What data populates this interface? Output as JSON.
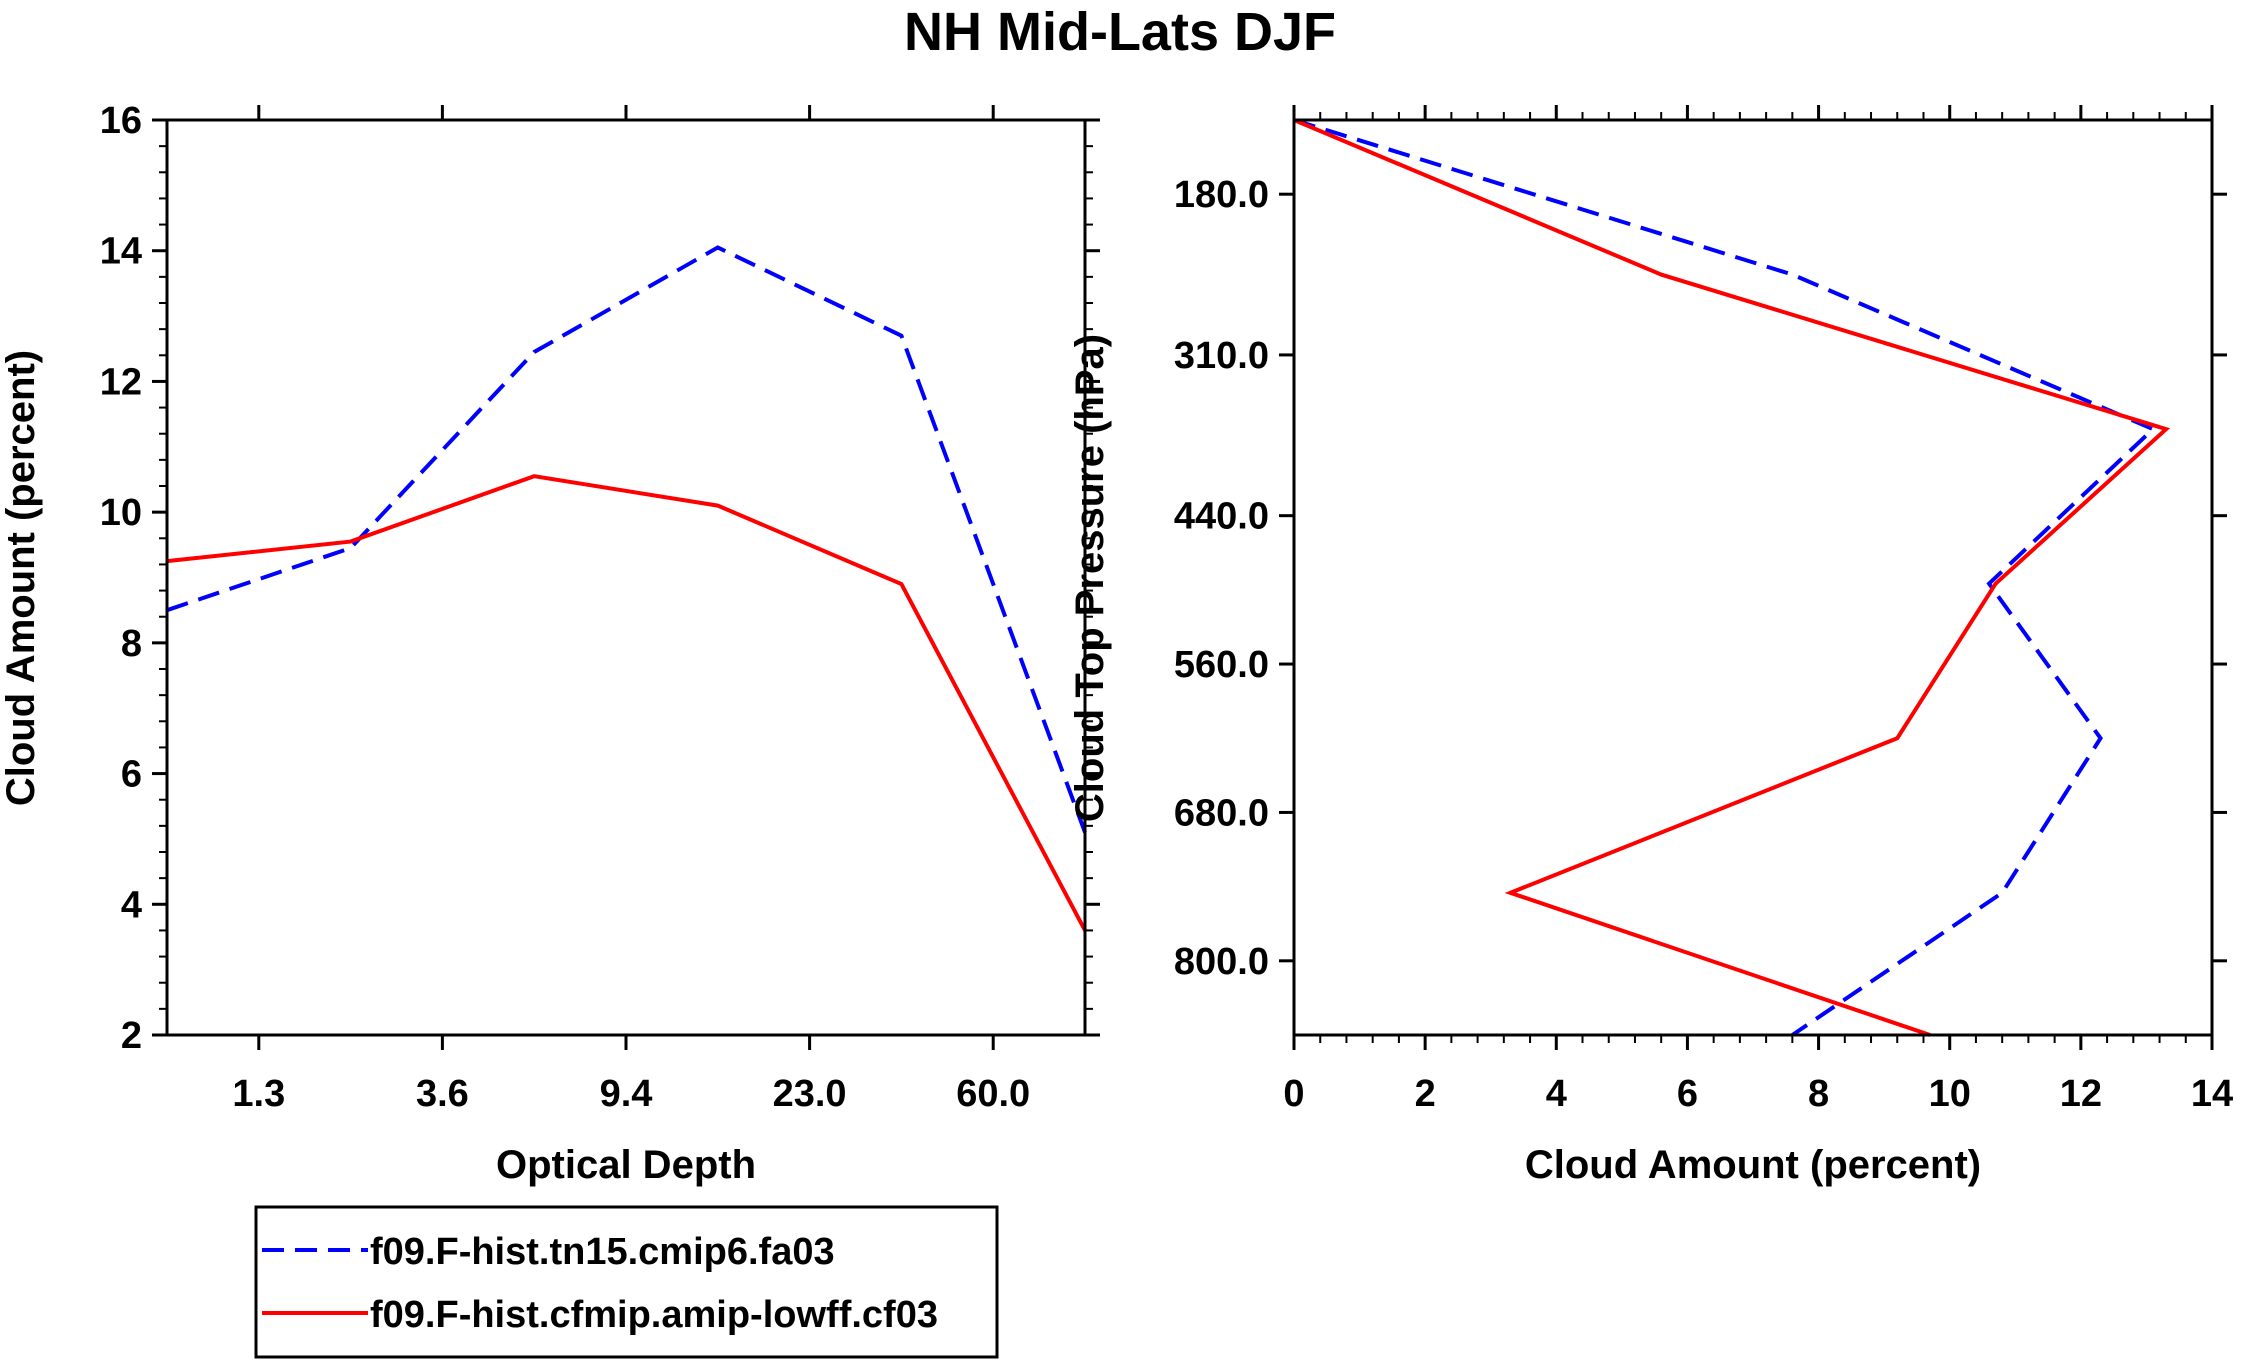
{
  "title": "NH Mid-Lats DJF",
  "colors": {
    "series_dashed": "#0000ff",
    "series_solid": "#ff0000"
  },
  "legend": {
    "entries": [
      {
        "label": "f09.F-hist.tn15.cmip6.fa03",
        "style": "dashed",
        "color": "#0000ff"
      },
      {
        "label": "f09.F-hist.cfmip.amip-lowff.cf03",
        "style": "solid",
        "color": "#ff0000"
      }
    ]
  },
  "chart_data": [
    {
      "type": "line",
      "xlabel": "Optical Depth",
      "ylabel": "Cloud Amount (percent)",
      "x_scale": "category-index",
      "xlim": [
        0,
        5
      ],
      "ylim": [
        2,
        16
      ],
      "x_tick_positions": [
        0.5,
        1.5,
        2.5,
        3.5,
        4.5
      ],
      "x_tick_labels": [
        "1.3",
        "3.6",
        "9.4",
        "23.0",
        "60.0"
      ],
      "y_ticks": [
        2,
        4,
        6,
        8,
        10,
        12,
        14,
        16
      ],
      "y_tick_labels": [
        "2",
        "4",
        "6",
        "8",
        "10",
        "12",
        "14",
        "16"
      ],
      "x": [
        0,
        1,
        2,
        3,
        4,
        5
      ],
      "series": [
        {
          "name": "f09.F-hist.tn15.cmip6.fa03",
          "values": [
            8.5,
            9.45,
            12.45,
            14.05,
            12.7,
            5.1
          ]
        },
        {
          "name": "f09.F-hist.cfmip.amip-lowff.cf03",
          "values": [
            9.25,
            9.55,
            10.55,
            10.1,
            8.9,
            3.6
          ]
        }
      ]
    },
    {
      "type": "line",
      "orientation": "profile",
      "xlabel": "Cloud Amount (percent)",
      "ylabel": "Cloud Top Pressure (hPa)",
      "xlim": [
        0,
        14
      ],
      "x_ticks": [
        0,
        2,
        4,
        6,
        8,
        10,
        12,
        14
      ],
      "x_tick_labels": [
        "0",
        "2",
        "4",
        "6",
        "8",
        "10",
        "12",
        "14"
      ],
      "ylim": [
        120,
        860
      ],
      "y_inverted": true,
      "y_ticks": [
        180,
        310,
        440,
        560,
        680,
        800
      ],
      "y_tick_labels": [
        "180.0",
        "310.0",
        "440.0",
        "560.0",
        "680.0",
        "800.0"
      ],
      "pressure": [
        120,
        245,
        370,
        495,
        620,
        745,
        860
      ],
      "series": [
        {
          "name": "f09.F-hist.tn15.cmip6.fa03",
          "values": [
            0,
            7.6,
            13.1,
            10.6,
            12.3,
            10.8,
            7.6
          ]
        },
        {
          "name": "f09.F-hist.cfmip.amip-lowff.cf03",
          "values": [
            0,
            5.6,
            13.3,
            10.7,
            9.2,
            3.3,
            9.7
          ]
        }
      ]
    }
  ]
}
